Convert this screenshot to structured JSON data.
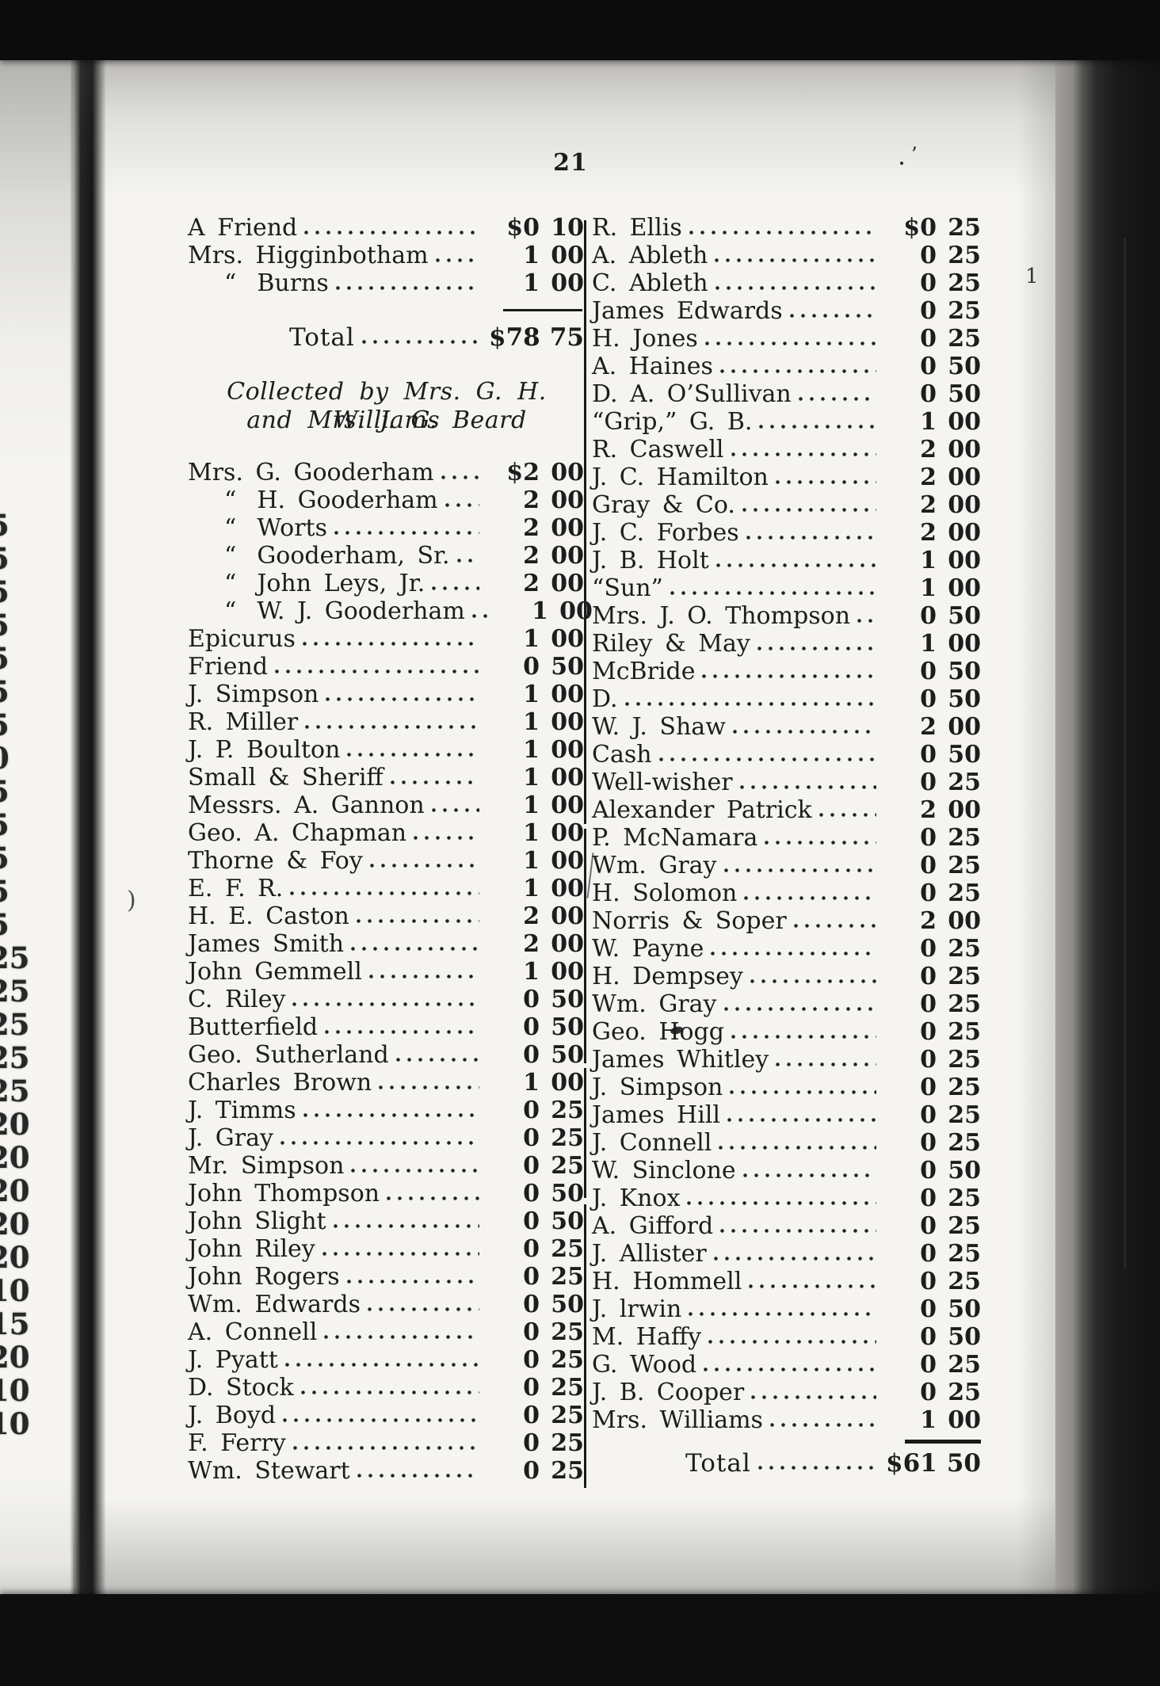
{
  "page_number": "21",
  "heading": {
    "line1": "Collected by Mrs. G. H. Williams",
    "line2": "and Mrs. J. G. Beard"
  },
  "left_column": {
    "group1": [
      {
        "name": "A Friend",
        "dollars": "$0",
        "cents": "10"
      },
      {
        "name": "Mrs. Higginbotham",
        "dollars": "1",
        "cents": "00"
      },
      {
        "ditto": true,
        "name": "Burns",
        "dollars": "1",
        "cents": "00"
      }
    ],
    "total": {
      "label": "Total",
      "dollars": "$78",
      "cents": "75"
    },
    "group2": [
      {
        "name": "Mrs. G. Gooderham",
        "dollars": "$2",
        "cents": "00"
      },
      {
        "ditto": true,
        "name": "H. Gooderham",
        "dollars": "2",
        "cents": "00"
      },
      {
        "ditto": true,
        "name": "Worts",
        "dollars": "2",
        "cents": "00"
      },
      {
        "ditto": true,
        "name": "Gooderham, Sr.",
        "dollars": "2",
        "cents": "00"
      },
      {
        "ditto": true,
        "name": "John Leys, Jr.",
        "dollars": "2",
        "cents": "00"
      },
      {
        "ditto": true,
        "name": "W. J. Gooderham",
        "dollars": "1",
        "cents": "00"
      },
      {
        "name": "Epicurus",
        "dollars": "1",
        "cents": "00"
      },
      {
        "name": "Friend",
        "dollars": "0",
        "cents": "50"
      },
      {
        "name": "J. Simpson",
        "dollars": "1",
        "cents": "00"
      },
      {
        "name": "R. Miller",
        "dollars": "1",
        "cents": "00"
      },
      {
        "name": "J. P. Boulton",
        "dollars": "1",
        "cents": "00"
      },
      {
        "name": "Small & Sheriff",
        "dollars": "1",
        "cents": "00"
      },
      {
        "name": "Messrs. A. Gannon",
        "dollars": "1",
        "cents": "00"
      },
      {
        "name": "Geo. A. Chapman",
        "dollars": "1",
        "cents": "00"
      },
      {
        "name": "Thorne & Foy",
        "dollars": "1",
        "cents": "00"
      },
      {
        "name": "E. F. R.",
        "dollars": "1",
        "cents": "00"
      },
      {
        "name": "H. E. Caston",
        "dollars": "2",
        "cents": "00"
      },
      {
        "name": "James Smith",
        "dollars": "2",
        "cents": "00"
      },
      {
        "name": "John Gemmell",
        "dollars": "1",
        "cents": "00"
      },
      {
        "name": "C. Riley",
        "dollars": "0",
        "cents": "50"
      },
      {
        "name": "Butterfield",
        "dollars": "0",
        "cents": "50"
      },
      {
        "name": "Geo. Sutherland",
        "dollars": "0",
        "cents": "50"
      },
      {
        "name": "Charles Brown",
        "dollars": "1",
        "cents": "00"
      },
      {
        "name": "J. Timms",
        "dollars": "0",
        "cents": "25"
      },
      {
        "name": "J. Gray",
        "dollars": "0",
        "cents": "25"
      },
      {
        "name": "Mr. Simpson",
        "dollars": "0",
        "cents": "25"
      },
      {
        "name": "John Thompson",
        "dollars": "0",
        "cents": "50"
      },
      {
        "name": "John Slight",
        "dollars": "0",
        "cents": "50"
      },
      {
        "name": "John Riley",
        "dollars": "0",
        "cents": "25"
      },
      {
        "name": "John Rogers",
        "dollars": "0",
        "cents": "25"
      },
      {
        "name": "Wm. Edwards",
        "dollars": "0",
        "cents": "50"
      },
      {
        "name": "A. Connell",
        "dollars": "0",
        "cents": "25"
      },
      {
        "name": "J. Pyatt",
        "dollars": "0",
        "cents": "25"
      },
      {
        "name": "D. Stock",
        "dollars": "0",
        "cents": "25"
      },
      {
        "name": "J. Boyd",
        "dollars": "0",
        "cents": "25"
      },
      {
        "name": "F. Ferry",
        "dollars": "0",
        "cents": "25"
      },
      {
        "name": "Wm. Stewart",
        "dollars": "0",
        "cents": "25"
      }
    ]
  },
  "right_column": {
    "rows": [
      {
        "name": "R. Ellis",
        "dollars": "$0",
        "cents": "25"
      },
      {
        "name": "A. Ableth",
        "dollars": "0",
        "cents": "25"
      },
      {
        "name": "C. Ableth",
        "dollars": "0",
        "cents": "25"
      },
      {
        "name": "James Edwards",
        "dollars": "0",
        "cents": "25"
      },
      {
        "name": "H. Jones",
        "dollars": "0",
        "cents": "25"
      },
      {
        "name": "A. Haines",
        "dollars": "0",
        "cents": "50"
      },
      {
        "name": "D. A. O’Sullivan",
        "dollars": "0",
        "cents": "50"
      },
      {
        "name": "“Grip,” G. B.",
        "dollars": "1",
        "cents": "00"
      },
      {
        "name": "R. Caswell",
        "dollars": "2",
        "cents": "00"
      },
      {
        "name": "J. C. Hamilton",
        "dollars": "2",
        "cents": "00"
      },
      {
        "name": "Gray & Co.",
        "dollars": "2",
        "cents": "00"
      },
      {
        "name": "J. C. Forbes",
        "dollars": "2",
        "cents": "00"
      },
      {
        "name": "J. B. Holt",
        "dollars": "1",
        "cents": "00"
      },
      {
        "name": "“Sun”",
        "dollars": "1",
        "cents": "00"
      },
      {
        "name": "Mrs. J. O. Thompson",
        "dollars": "0",
        "cents": "50"
      },
      {
        "name": "Riley & May",
        "dollars": "1",
        "cents": "00"
      },
      {
        "name": "McBride",
        "dollars": "0",
        "cents": "50"
      },
      {
        "name": "D.",
        "dollars": "0",
        "cents": "50"
      },
      {
        "name": "W. J. Shaw",
        "dollars": "2",
        "cents": "00"
      },
      {
        "name": "Cash",
        "dollars": "0",
        "cents": "50"
      },
      {
        "name": "Well-wisher",
        "dollars": "0",
        "cents": "25"
      },
      {
        "name": "Alexander Patrick",
        "dollars": "2",
        "cents": "00"
      },
      {
        "name": "P. McNamara",
        "dollars": "0",
        "cents": "25"
      },
      {
        "name": "Wm. Gray",
        "dollars": "0",
        "cents": "25"
      },
      {
        "name": "H. Solomon",
        "dollars": "0",
        "cents": "25"
      },
      {
        "name": "Norris & Soper",
        "dollars": "2",
        "cents": "00"
      },
      {
        "name": "W. Payne",
        "dollars": "0",
        "cents": "25"
      },
      {
        "name": "H. Dempsey",
        "dollars": "0",
        "cents": "25"
      },
      {
        "name": "Wm. Gray",
        "dollars": "0",
        "cents": "25"
      },
      {
        "name": "Geo. Hogg",
        "dollars": "0",
        "cents": "25"
      },
      {
        "name": "James Whitley",
        "dollars": "0",
        "cents": "25"
      },
      {
        "name": "J. Simpson",
        "dollars": "0",
        "cents": "25"
      },
      {
        "name": "James Hill",
        "dollars": "0",
        "cents": "25"
      },
      {
        "name": "J. Connell",
        "dollars": "0",
        "cents": "25"
      },
      {
        "name": "W. Sinclone",
        "dollars": "0",
        "cents": "50"
      },
      {
        "name": "J. Knox",
        "dollars": "0",
        "cents": "25"
      },
      {
        "name": "A. Gifford",
        "dollars": "0",
        "cents": "25"
      },
      {
        "name": "J. Allister",
        "dollars": "0",
        "cents": "25"
      },
      {
        "name": "H. Hommell",
        "dollars": "0",
        "cents": "25"
      },
      {
        "name": "J. lrwin",
        "dollars": "0",
        "cents": "50"
      },
      {
        "name": "M. Haffy",
        "dollars": "0",
        "cents": "50"
      },
      {
        "name": "G. Wood",
        "dollars": "0",
        "cents": "25"
      },
      {
        "name": "J. B. Cooper",
        "dollars": "0",
        "cents": "25"
      },
      {
        "name": "Mrs. Williams",
        "dollars": "1",
        "cents": "00"
      }
    ],
    "total": {
      "label": "Total",
      "dollars": "$61",
      "cents": "50"
    }
  },
  "margin_digits": [
    "5",
    "5",
    "5",
    "5",
    "5",
    "5",
    "5",
    "0",
    "5",
    "5",
    "5",
    "5",
    "5",
    "25",
    "25",
    "25",
    "25",
    "25",
    "20",
    "20",
    "20",
    "20",
    "20",
    "10",
    "15",
    "20",
    "10",
    "10"
  ],
  "artifacts": {
    "top_right_mark": "’",
    "edge_tick": "1",
    "gutter_paren": ")"
  },
  "colors": {
    "ink": "#1d1d1d",
    "paper": "#f5f4f1",
    "scan_border": "#0c0c0c"
  }
}
